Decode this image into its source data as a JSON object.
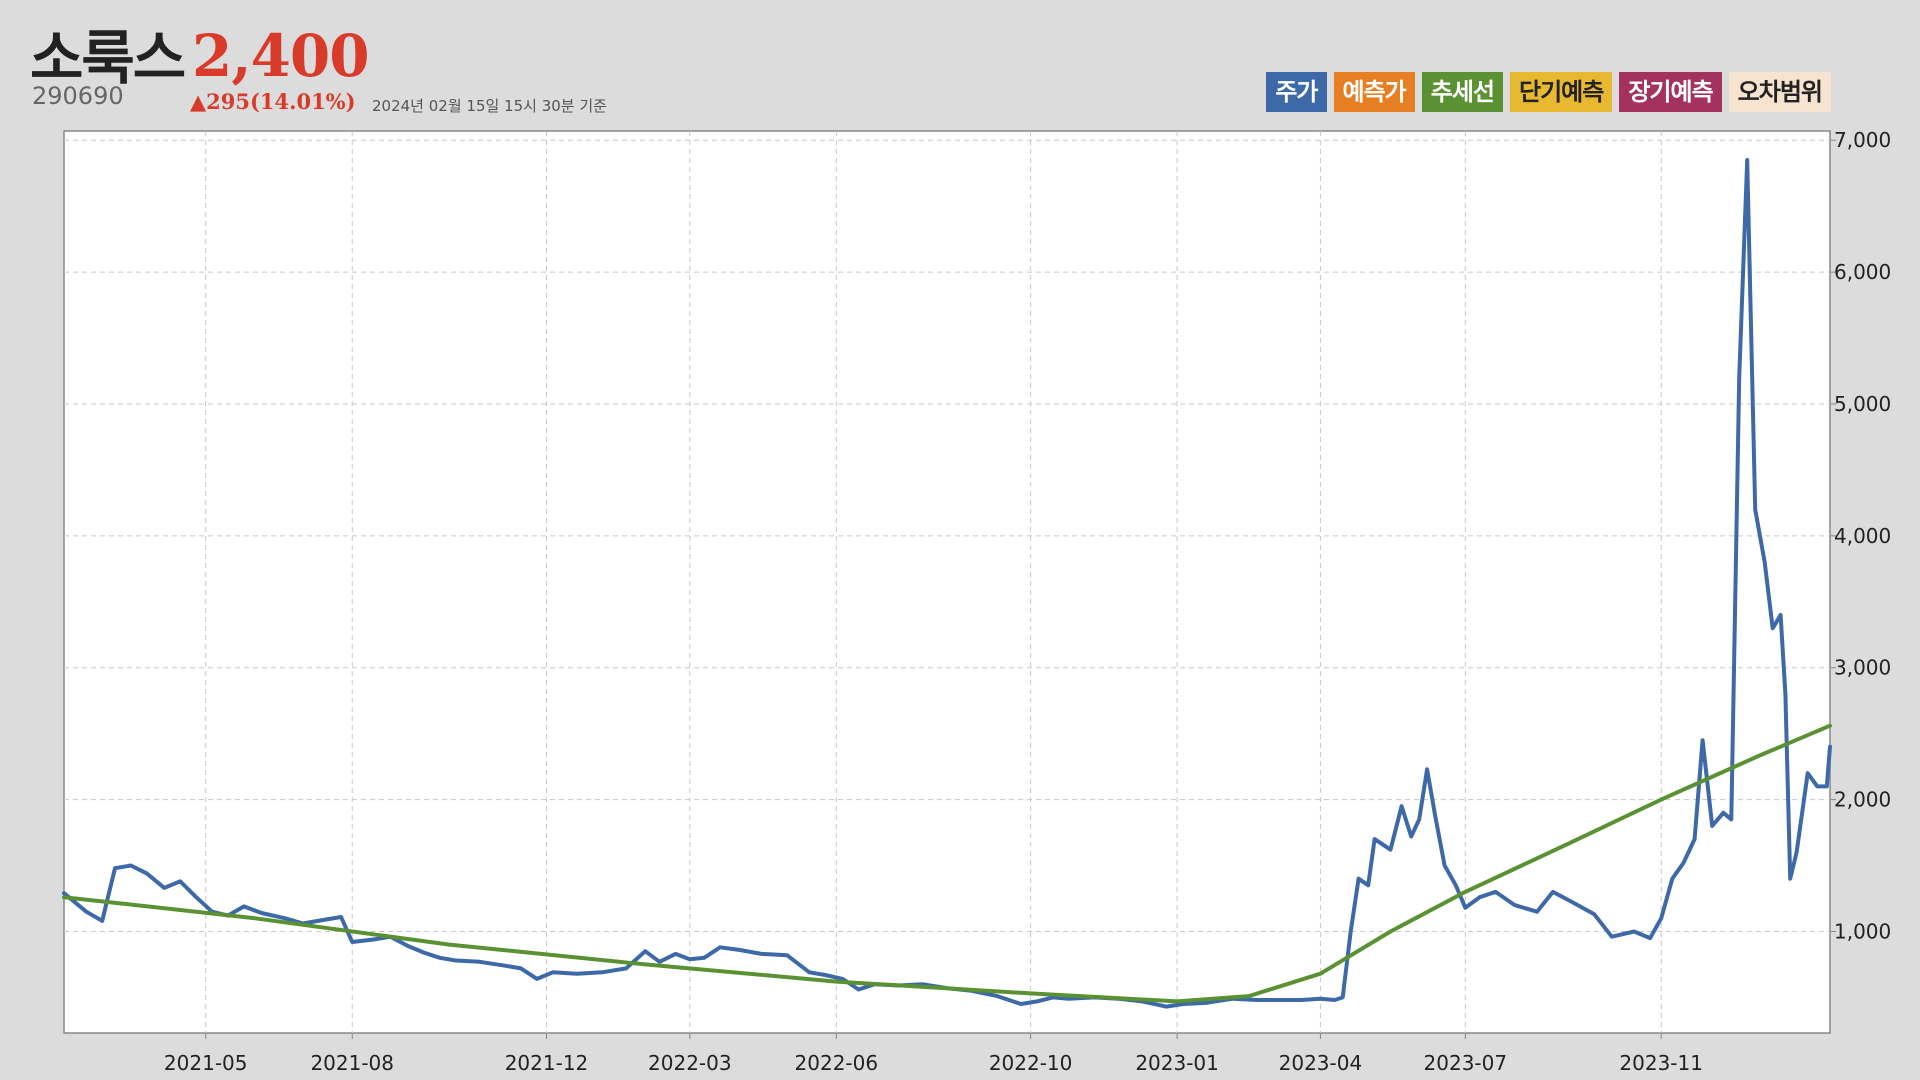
{
  "stock": {
    "name": "소룩스",
    "code": "290690",
    "price": "2,400",
    "change": "▲295(14.01%)",
    "as_of": "2024년 02월 15일 15시 30분 기준"
  },
  "legend": [
    {
      "label": "주가",
      "color": "#3d69a8",
      "text_color": "#ffffff"
    },
    {
      "label": "예측가",
      "color": "#e67e22",
      "text_color": "#ffffff"
    },
    {
      "label": "추세선",
      "color": "#5a9132",
      "text_color": "#ffffff"
    },
    {
      "label": "단기예측",
      "color": "#e8b830",
      "text_color": "#222222"
    },
    {
      "label": "장기예측",
      "color": "#a3335e",
      "text_color": "#ffffff"
    },
    {
      "label": "오차범위",
      "color": "#f6e4d0",
      "text_color": "#222222"
    }
  ],
  "colors": {
    "price_line": "#3d69a8",
    "trend_line": "#5a9132",
    "up": "#d93b2b",
    "grid": "#c8c8c8",
    "plot_bg": "#ffffff"
  },
  "chart_data": {
    "type": "line",
    "x_tick_labels": [
      "2021-05",
      "2021-08",
      "2021-12",
      "2022-03",
      "2022-06",
      "2022-10",
      "2023-01",
      "2023-04",
      "2023-07",
      "2023-11"
    ],
    "x_tick_dates": [
      "2021-05-01",
      "2021-08-01",
      "2021-12-01",
      "2022-03-01",
      "2022-06-01",
      "2022-10-01",
      "2023-01-01",
      "2023-04-01",
      "2023-07-01",
      "2023-11-01"
    ],
    "y_tick_labels": [
      "1,000",
      "2,000",
      "3,000",
      "4,000",
      "5,000",
      "6,000",
      "7,000"
    ],
    "y_ticks": [
      1000,
      2000,
      3000,
      4000,
      5000,
      6000,
      7000
    ],
    "xlim": [
      "2021-02-01",
      "2024-02-15"
    ],
    "ylim": [
      230,
      7070
    ],
    "grid": true,
    "y_axis_side": "right",
    "series": [
      {
        "key": "price",
        "points": [
          [
            "2021-02-01",
            1290
          ],
          [
            "2021-02-15",
            1150
          ],
          [
            "2021-02-25",
            1080
          ],
          [
            "2021-03-05",
            1480
          ],
          [
            "2021-03-15",
            1500
          ],
          [
            "2021-03-25",
            1440
          ],
          [
            "2021-04-05",
            1330
          ],
          [
            "2021-04-15",
            1380
          ],
          [
            "2021-04-25",
            1260
          ],
          [
            "2021-05-05",
            1150
          ],
          [
            "2021-05-15",
            1120
          ],
          [
            "2021-05-25",
            1190
          ],
          [
            "2021-06-05",
            1140
          ],
          [
            "2021-06-20",
            1100
          ],
          [
            "2021-07-01",
            1060
          ],
          [
            "2021-07-15",
            1090
          ],
          [
            "2021-07-25",
            1110
          ],
          [
            "2021-08-01",
            920
          ],
          [
            "2021-08-15",
            940
          ],
          [
            "2021-08-25",
            960
          ],
          [
            "2021-09-05",
            890
          ],
          [
            "2021-09-15",
            840
          ],
          [
            "2021-09-25",
            800
          ],
          [
            "2021-10-05",
            780
          ],
          [
            "2021-10-20",
            770
          ],
          [
            "2021-11-05",
            740
          ],
          [
            "2021-11-15",
            720
          ],
          [
            "2021-11-25",
            640
          ],
          [
            "2021-12-05",
            690
          ],
          [
            "2021-12-20",
            680
          ],
          [
            "2022-01-05",
            690
          ],
          [
            "2022-01-20",
            720
          ],
          [
            "2022-02-01",
            850
          ],
          [
            "2022-02-10",
            770
          ],
          [
            "2022-02-20",
            830
          ],
          [
            "2022-03-01",
            790
          ],
          [
            "2022-03-10",
            800
          ],
          [
            "2022-03-20",
            880
          ],
          [
            "2022-04-01",
            860
          ],
          [
            "2022-04-15",
            830
          ],
          [
            "2022-05-01",
            820
          ],
          [
            "2022-05-15",
            690
          ],
          [
            "2022-05-25",
            670
          ],
          [
            "2022-06-05",
            640
          ],
          [
            "2022-06-15",
            560
          ],
          [
            "2022-06-25",
            600
          ],
          [
            "2022-07-10",
            590
          ],
          [
            "2022-07-25",
            600
          ],
          [
            "2022-08-10",
            570
          ],
          [
            "2022-08-25",
            550
          ],
          [
            "2022-09-10",
            510
          ],
          [
            "2022-09-25",
            450
          ],
          [
            "2022-10-05",
            470
          ],
          [
            "2022-10-15",
            500
          ],
          [
            "2022-10-25",
            490
          ],
          [
            "2022-11-10",
            500
          ],
          [
            "2022-11-25",
            490
          ],
          [
            "2022-12-10",
            470
          ],
          [
            "2022-12-25",
            430
          ],
          [
            "2023-01-05",
            450
          ],
          [
            "2023-01-20",
            460
          ],
          [
            "2023-02-05",
            490
          ],
          [
            "2023-02-20",
            480
          ],
          [
            "2023-03-05",
            480
          ],
          [
            "2023-03-20",
            480
          ],
          [
            "2023-04-01",
            490
          ],
          [
            "2023-04-10",
            480
          ],
          [
            "2023-04-15",
            500
          ],
          [
            "2023-04-20",
            1000
          ],
          [
            "2023-04-25",
            1400
          ],
          [
            "2023-05-01",
            1350
          ],
          [
            "2023-05-05",
            1700
          ],
          [
            "2023-05-15",
            1620
          ],
          [
            "2023-05-22",
            1950
          ],
          [
            "2023-05-28",
            1720
          ],
          [
            "2023-06-02",
            1850
          ],
          [
            "2023-06-07",
            2230
          ],
          [
            "2023-06-12",
            1880
          ],
          [
            "2023-06-18",
            1500
          ],
          [
            "2023-06-25",
            1350
          ],
          [
            "2023-07-01",
            1180
          ],
          [
            "2023-07-10",
            1260
          ],
          [
            "2023-07-20",
            1300
          ],
          [
            "2023-08-01",
            1200
          ],
          [
            "2023-08-15",
            1150
          ],
          [
            "2023-08-25",
            1300
          ],
          [
            "2023-09-05",
            1230
          ],
          [
            "2023-09-20",
            1130
          ],
          [
            "2023-10-01",
            960
          ],
          [
            "2023-10-15",
            1000
          ],
          [
            "2023-10-25",
            950
          ],
          [
            "2023-11-01",
            1100
          ],
          [
            "2023-11-08",
            1400
          ],
          [
            "2023-11-15",
            1520
          ],
          [
            "2023-11-22",
            1700
          ],
          [
            "2023-11-27",
            2450
          ],
          [
            "2023-12-03",
            1800
          ],
          [
            "2023-12-10",
            1900
          ],
          [
            "2023-12-15",
            1850
          ],
          [
            "2023-12-20",
            5200
          ],
          [
            "2023-12-25",
            6850
          ],
          [
            "2023-12-30",
            4200
          ],
          [
            "2024-01-05",
            3800
          ],
          [
            "2024-01-10",
            3300
          ],
          [
            "2024-01-15",
            3400
          ],
          [
            "2024-01-18",
            2800
          ],
          [
            "2024-01-21",
            1400
          ],
          [
            "2024-01-25",
            1600
          ],
          [
            "2024-02-01",
            2200
          ],
          [
            "2024-02-07",
            2100
          ],
          [
            "2024-02-13",
            2100
          ],
          [
            "2024-02-15",
            2400
          ]
        ]
      },
      {
        "key": "trend",
        "points": [
          [
            "2021-02-01",
            1260
          ],
          [
            "2021-06-01",
            1100
          ],
          [
            "2021-10-01",
            900
          ],
          [
            "2022-02-01",
            750
          ],
          [
            "2022-06-01",
            620
          ],
          [
            "2022-10-01",
            530
          ],
          [
            "2023-01-01",
            470
          ],
          [
            "2023-02-15",
            510
          ],
          [
            "2023-04-01",
            680
          ],
          [
            "2023-05-15",
            1000
          ],
          [
            "2023-07-01",
            1300
          ],
          [
            "2023-09-01",
            1650
          ],
          [
            "2023-11-01",
            2000
          ],
          [
            "2024-01-01",
            2330
          ],
          [
            "2024-02-15",
            2560
          ]
        ]
      }
    ]
  }
}
